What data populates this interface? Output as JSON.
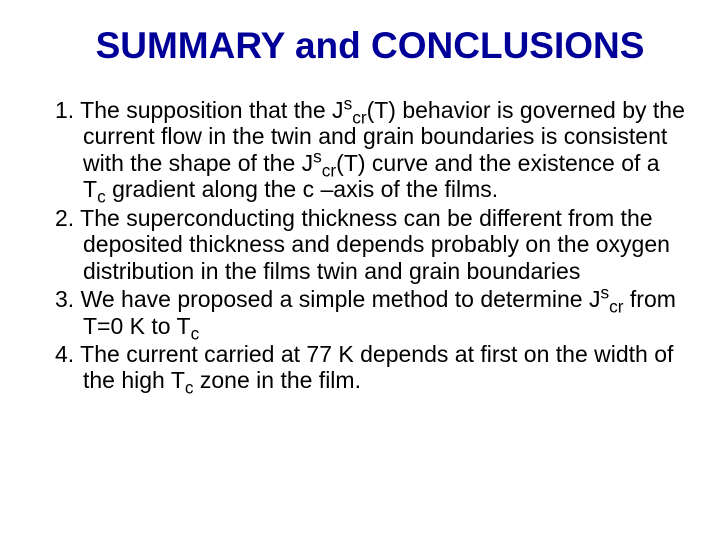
{
  "title": "SUMMARY and CONCLUSIONS",
  "items": [
    {
      "pre1": "The supposition that the J",
      "sup1": "s",
      "sub1": "cr",
      "mid1": "(T) behavior is governed by the current flow in the twin and grain boundaries is consistent with the shape of the J",
      "sup2": "s",
      "sub2": "cr",
      "mid2": "(T) curve and the existence of a T",
      "sub3": "c",
      "post": " gradient along the c –axis of the films."
    },
    {
      "text": "The superconducting thickness can be different from the deposited thickness and depends probably on the oxygen distribution in the films twin and grain boundaries"
    },
    {
      "pre1": "We have proposed a simple method to determine J",
      "sup1": "s",
      "sub1": "cr",
      "mid1": " from T=0 K to T",
      "sub2": "c",
      "post": ""
    },
    {
      "pre1": "The current carried at 77 K depends at first on the width of the high T",
      "sub1": "c",
      "post": " zone in the film."
    }
  ]
}
